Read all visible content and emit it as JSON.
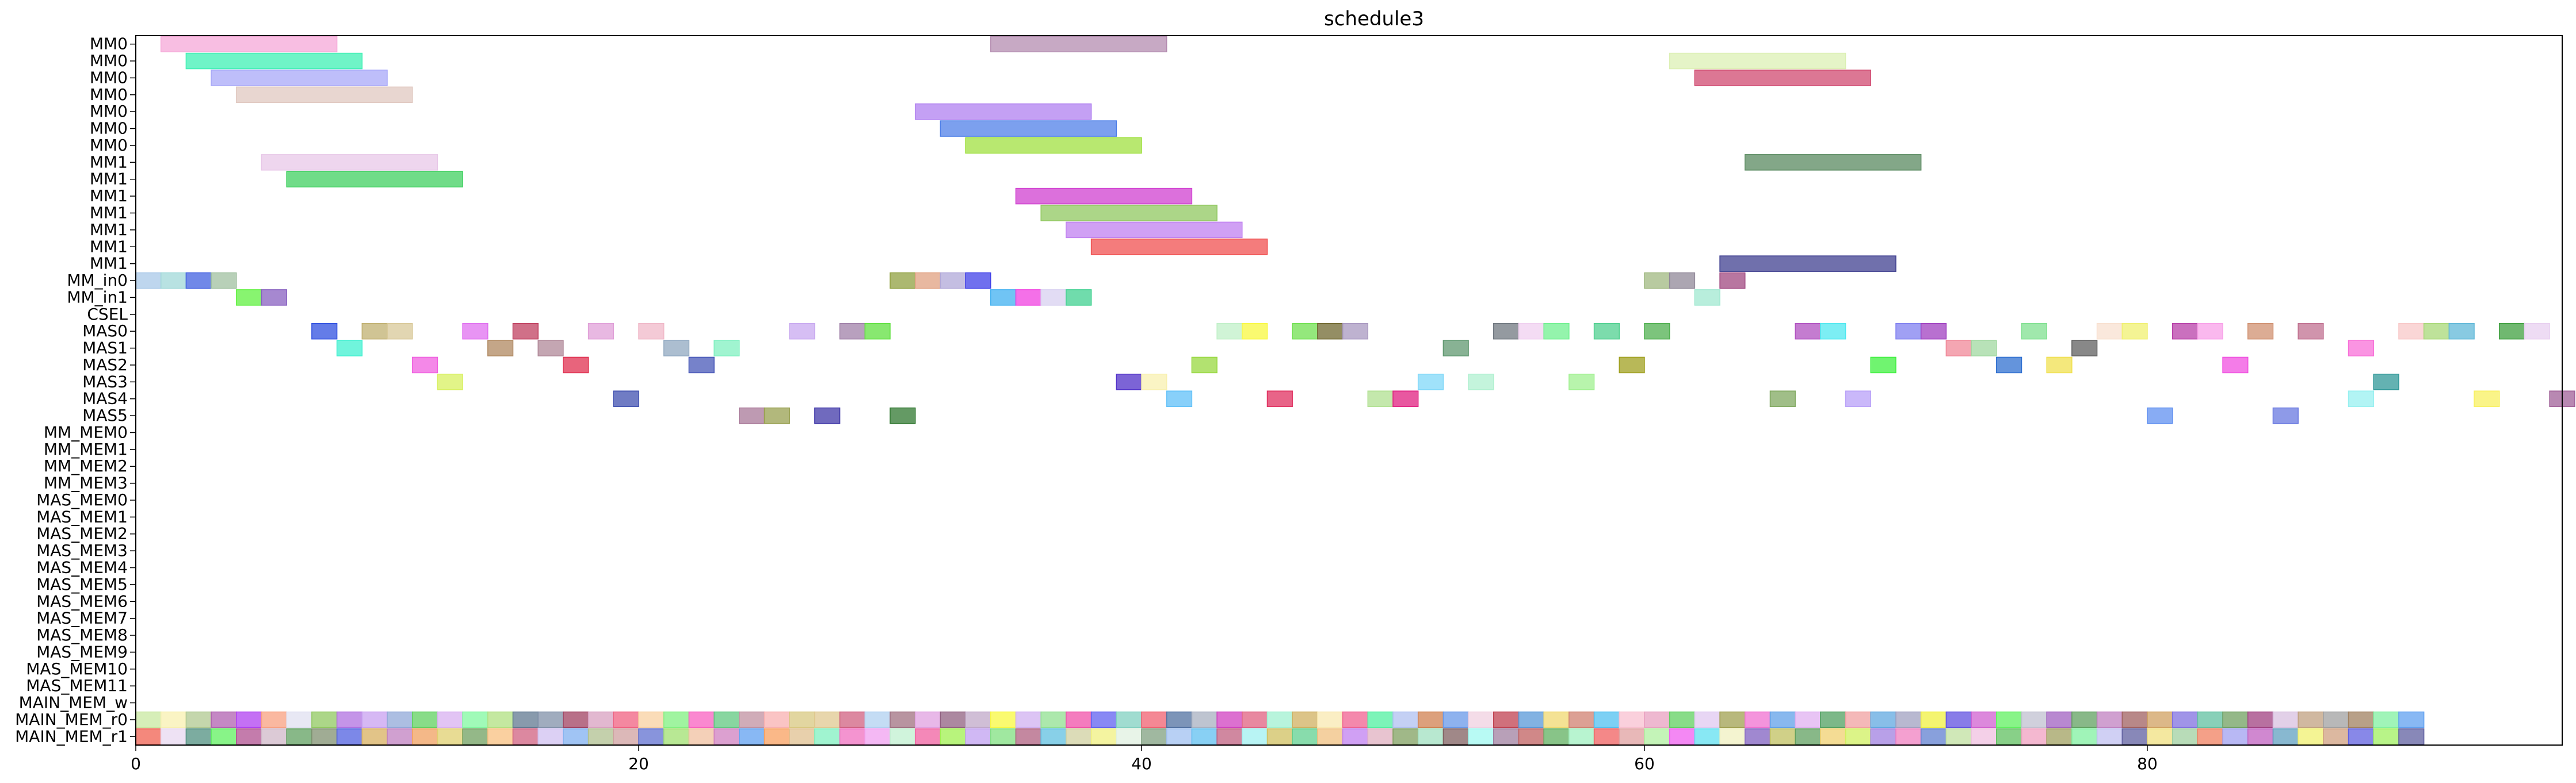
{
  "chart_data": {
    "type": "gantt",
    "title": "schedule3",
    "xlabel": "",
    "ylabel": "",
    "xlim": [
      0,
      96.5
    ],
    "xticks": [
      0,
      20,
      40,
      60,
      80
    ],
    "grid": false,
    "rows": [
      "MM0",
      "MM0",
      "MM0",
      "MM0",
      "MM0",
      "MM0",
      "MM0",
      "MM1",
      "MM1",
      "MM1",
      "MM1",
      "MM1",
      "MM1",
      "MM1",
      "MM_in0",
      "MM_in1",
      "CSEL",
      "MAS0",
      "MAS1",
      "MAS2",
      "MAS3",
      "MAS4",
      "MAS5",
      "MM_MEM0",
      "MM_MEM1",
      "MM_MEM2",
      "MM_MEM3",
      "MAS_MEM0",
      "MAS_MEM1",
      "MAS_MEM2",
      "MAS_MEM3",
      "MAS_MEM4",
      "MAS_MEM5",
      "MAS_MEM6",
      "MAS_MEM7",
      "MAS_MEM8",
      "MAS_MEM9",
      "MAS_MEM10",
      "MAS_MEM11",
      "MAIN_MEM_w",
      "MAIN_MEM_r0",
      "MAIN_MEM_r1"
    ],
    "tasks": [
      {
        "row": 0,
        "start": 1,
        "end": 8,
        "color": "#f5a8d8"
      },
      {
        "row": 0,
        "start": 34,
        "end": 41,
        "color": "#b48cb0"
      },
      {
        "row": 1,
        "start": 2,
        "end": 9,
        "color": "#3ff0b4"
      },
      {
        "row": 1,
        "start": 61,
        "end": 68,
        "color": "#dcf0b4"
      },
      {
        "row": 2,
        "start": 3,
        "end": 10,
        "color": "#a8a8f8"
      },
      {
        "row": 2,
        "start": 62,
        "end": 69,
        "color": "#d04a70"
      },
      {
        "row": 3,
        "start": 4,
        "end": 11,
        "color": "#e0c8c0"
      },
      {
        "row": 4,
        "start": 31,
        "end": 38,
        "color": "#b080f0"
      },
      {
        "row": 5,
        "start": 32,
        "end": 39,
        "color": "#5080e8"
      },
      {
        "row": 6,
        "start": 33,
        "end": 40,
        "color": "#a0e040"
      },
      {
        "row": 7,
        "start": 5,
        "end": 12,
        "color": "#e8c8e8"
      },
      {
        "row": 7,
        "start": 64,
        "end": 71,
        "color": "#5a8a60"
      },
      {
        "row": 8,
        "start": 6,
        "end": 13,
        "color": "#40d060"
      },
      {
        "row": 9,
        "start": 35,
        "end": 42,
        "color": "#d040d0"
      },
      {
        "row": 10,
        "start": 36,
        "end": 43,
        "color": "#90c860"
      },
      {
        "row": 11,
        "start": 37,
        "end": 44,
        "color": "#c080f0"
      },
      {
        "row": 12,
        "start": 38,
        "end": 45,
        "color": "#f05050"
      },
      {
        "row": 13,
        "start": 63,
        "end": 70,
        "color": "#404090"
      },
      {
        "row": 14,
        "start": 0,
        "end": 1,
        "color": "#a8c8e8"
      },
      {
        "row": 14,
        "start": 1,
        "end": 2,
        "color": "#a0d8d8"
      },
      {
        "row": 14,
        "start": 2,
        "end": 3,
        "color": "#4060e0"
      },
      {
        "row": 14,
        "start": 3,
        "end": 4,
        "color": "#a0c0a0"
      },
      {
        "row": 14,
        "start": 30,
        "end": 31,
        "color": "#90a040"
      },
      {
        "row": 14,
        "start": 31,
        "end": 32,
        "color": "#e0a080"
      },
      {
        "row": 14,
        "start": 32,
        "end": 33,
        "color": "#b0a8d8"
      },
      {
        "row": 14,
        "start": 33,
        "end": 34,
        "color": "#4040e8"
      },
      {
        "row": 14,
        "start": 60,
        "end": 61,
        "color": "#a0b880"
      },
      {
        "row": 14,
        "start": 61,
        "end": 62,
        "color": "#908898"
      },
      {
        "row": 14,
        "start": 63,
        "end": 64,
        "color": "#a04880"
      },
      {
        "row": 15,
        "start": 4,
        "end": 5,
        "color": "#60f040"
      },
      {
        "row": 15,
        "start": 5,
        "end": 6,
        "color": "#8860c0"
      },
      {
        "row": 15,
        "start": 34,
        "end": 35,
        "color": "#40b0f0"
      },
      {
        "row": 15,
        "start": 35,
        "end": 36,
        "color": "#f040e0"
      },
      {
        "row": 15,
        "start": 36,
        "end": 37,
        "color": "#d8d0f0"
      },
      {
        "row": 15,
        "start": 37,
        "end": 38,
        "color": "#40d090"
      },
      {
        "row": 15,
        "start": 62,
        "end": 63,
        "color": "#a0e8d0"
      },
      {
        "row": 17,
        "start": 7,
        "end": 8,
        "color": "#3050e0"
      },
      {
        "row": 17,
        "start": 9,
        "end": 10,
        "color": "#c0b070"
      },
      {
        "row": 17,
        "start": 10,
        "end": 11,
        "color": "#d8c898"
      },
      {
        "row": 17,
        "start": 13,
        "end": 14,
        "color": "#e070f0"
      },
      {
        "row": 17,
        "start": 15,
        "end": 16,
        "color": "#c04060"
      },
      {
        "row": 17,
        "start": 18,
        "end": 19,
        "color": "#e0a0d8"
      },
      {
        "row": 17,
        "start": 20,
        "end": 21,
        "color": "#f0b8c8"
      },
      {
        "row": 17,
        "start": 26,
        "end": 27,
        "color": "#c8a8f0"
      },
      {
        "row": 17,
        "start": 28,
        "end": 29,
        "color": "#a080a8"
      },
      {
        "row": 17,
        "start": 29,
        "end": 30,
        "color": "#60e040"
      },
      {
        "row": 17,
        "start": 43,
        "end": 44,
        "color": "#c0f0c8"
      },
      {
        "row": 17,
        "start": 44,
        "end": 45,
        "color": "#f8f840"
      },
      {
        "row": 17,
        "start": 46,
        "end": 47,
        "color": "#70e050"
      },
      {
        "row": 17,
        "start": 47,
        "end": 48,
        "color": "#706830"
      },
      {
        "row": 17,
        "start": 48,
        "end": 49,
        "color": "#a898c0"
      },
      {
        "row": 17,
        "start": 54,
        "end": 55,
        "color": "#707880"
      },
      {
        "row": 17,
        "start": 55,
        "end": 56,
        "color": "#f0d0f0"
      },
      {
        "row": 17,
        "start": 56,
        "end": 57,
        "color": "#70f090"
      },
      {
        "row": 17,
        "start": 58,
        "end": 59,
        "color": "#50d090"
      },
      {
        "row": 17,
        "start": 60,
        "end": 61,
        "color": "#50b050"
      },
      {
        "row": 17,
        "start": 66,
        "end": 67,
        "color": "#b050c0"
      },
      {
        "row": 17,
        "start": 67,
        "end": 68,
        "color": "#50e8f0"
      },
      {
        "row": 17,
        "start": 70,
        "end": 71,
        "color": "#8080f0"
      },
      {
        "row": 17,
        "start": 71,
        "end": 72,
        "color": "#a040c0"
      },
      {
        "row": 17,
        "start": 75,
        "end": 76,
        "color": "#80e090"
      },
      {
        "row": 17,
        "start": 78,
        "end": 79,
        "color": "#f8e0d0"
      },
      {
        "row": 17,
        "start": 79,
        "end": 80,
        "color": "#f0f070"
      },
      {
        "row": 17,
        "start": 81,
        "end": 82,
        "color": "#b840a8"
      },
      {
        "row": 17,
        "start": 82,
        "end": 83,
        "color": "#f8a0e8"
      },
      {
        "row": 17,
        "start": 84,
        "end": 85,
        "color": "#d09070"
      },
      {
        "row": 17,
        "start": 86,
        "end": 87,
        "color": "#c07090"
      },
      {
        "row": 17,
        "start": 90,
        "end": 91,
        "color": "#f8c8c8"
      },
      {
        "row": 17,
        "start": 91,
        "end": 92,
        "color": "#a8d878"
      },
      {
        "row": 17,
        "start": 92,
        "end": 93,
        "color": "#60b8d8"
      },
      {
        "row": 17,
        "start": 94,
        "end": 95,
        "color": "#40a040"
      },
      {
        "row": 17,
        "start": 95,
        "end": 96,
        "color": "#e8d0f0"
      },
      {
        "row": 18,
        "start": 8,
        "end": 9,
        "color": "#40f0d0"
      },
      {
        "row": 18,
        "start": 14,
        "end": 15,
        "color": "#b08860"
      },
      {
        "row": 18,
        "start": 16,
        "end": 17,
        "color": "#b08898"
      },
      {
        "row": 18,
        "start": 21,
        "end": 22,
        "color": "#90a8c0"
      },
      {
        "row": 18,
        "start": 23,
        "end": 24,
        "color": "#80f0c0"
      },
      {
        "row": 18,
        "start": 52,
        "end": 53,
        "color": "#609870"
      },
      {
        "row": 18,
        "start": 72,
        "end": 73,
        "color": "#f08898"
      },
      {
        "row": 18,
        "start": 73,
        "end": 74,
        "color": "#a0d8a0"
      },
      {
        "row": 18,
        "start": 77,
        "end": 78,
        "color": "#606060"
      },
      {
        "row": 18,
        "start": 88,
        "end": 89,
        "color": "#f870d8"
      },
      {
        "row": 19,
        "start": 11,
        "end": 12,
        "color": "#f060e0"
      },
      {
        "row": 19,
        "start": 17,
        "end": 18,
        "color": "#e03050"
      },
      {
        "row": 19,
        "start": 22,
        "end": 23,
        "color": "#4858b8"
      },
      {
        "row": 19,
        "start": 42,
        "end": 43,
        "color": "#98d840"
      },
      {
        "row": 19,
        "start": 59,
        "end": 60,
        "color": "#a0a020"
      },
      {
        "row": 19,
        "start": 69,
        "end": 70,
        "color": "#40f040"
      },
      {
        "row": 19,
        "start": 74,
        "end": 75,
        "color": "#3070d0"
      },
      {
        "row": 19,
        "start": 76,
        "end": 77,
        "color": "#f0e050"
      },
      {
        "row": 19,
        "start": 83,
        "end": 84,
        "color": "#f050e0"
      },
      {
        "row": 20,
        "start": 12,
        "end": 13,
        "color": "#d8f060"
      },
      {
        "row": 20,
        "start": 39,
        "end": 40,
        "color": "#5030c8"
      },
      {
        "row": 20,
        "start": 40,
        "end": 41,
        "color": "#f8f0b0"
      },
      {
        "row": 20,
        "start": 51,
        "end": 52,
        "color": "#80d8f8"
      },
      {
        "row": 20,
        "start": 53,
        "end": 54,
        "color": "#b0f0d0"
      },
      {
        "row": 20,
        "start": 57,
        "end": 58,
        "color": "#a0f090"
      },
      {
        "row": 20,
        "start": 89,
        "end": 90,
        "color": "#309898"
      },
      {
        "row": 21,
        "start": 19,
        "end": 20,
        "color": "#4050b0"
      },
      {
        "row": 21,
        "start": 41,
        "end": 42,
        "color": "#60c0f8"
      },
      {
        "row": 21,
        "start": 45,
        "end": 46,
        "color": "#e03060"
      },
      {
        "row": 21,
        "start": 49,
        "end": 50,
        "color": "#b0e090"
      },
      {
        "row": 21,
        "start": 50,
        "end": 51,
        "color": "#e02080"
      },
      {
        "row": 21,
        "start": 65,
        "end": 66,
        "color": "#80a860"
      },
      {
        "row": 21,
        "start": 68,
        "end": 69,
        "color": "#b8a0f8"
      },
      {
        "row": 21,
        "start": 88,
        "end": 89,
        "color": "#98f0f0"
      },
      {
        "row": 21,
        "start": 93,
        "end": 94,
        "color": "#f8f060"
      },
      {
        "row": 21,
        "start": 96,
        "end": 97,
        "color": "#a06098"
      },
      {
        "row": 22,
        "start": 24,
        "end": 25,
        "color": "#a87898"
      },
      {
        "row": 22,
        "start": 25,
        "end": 26,
        "color": "#98a050"
      },
      {
        "row": 22,
        "start": 27,
        "end": 28,
        "color": "#4038a8"
      },
      {
        "row": 22,
        "start": 30,
        "end": 31,
        "color": "#307830"
      },
      {
        "row": 22,
        "start": 80,
        "end": 81,
        "color": "#6090f0"
      },
      {
        "row": 22,
        "start": 85,
        "end": 86,
        "color": "#6878e0"
      }
    ]
  }
}
